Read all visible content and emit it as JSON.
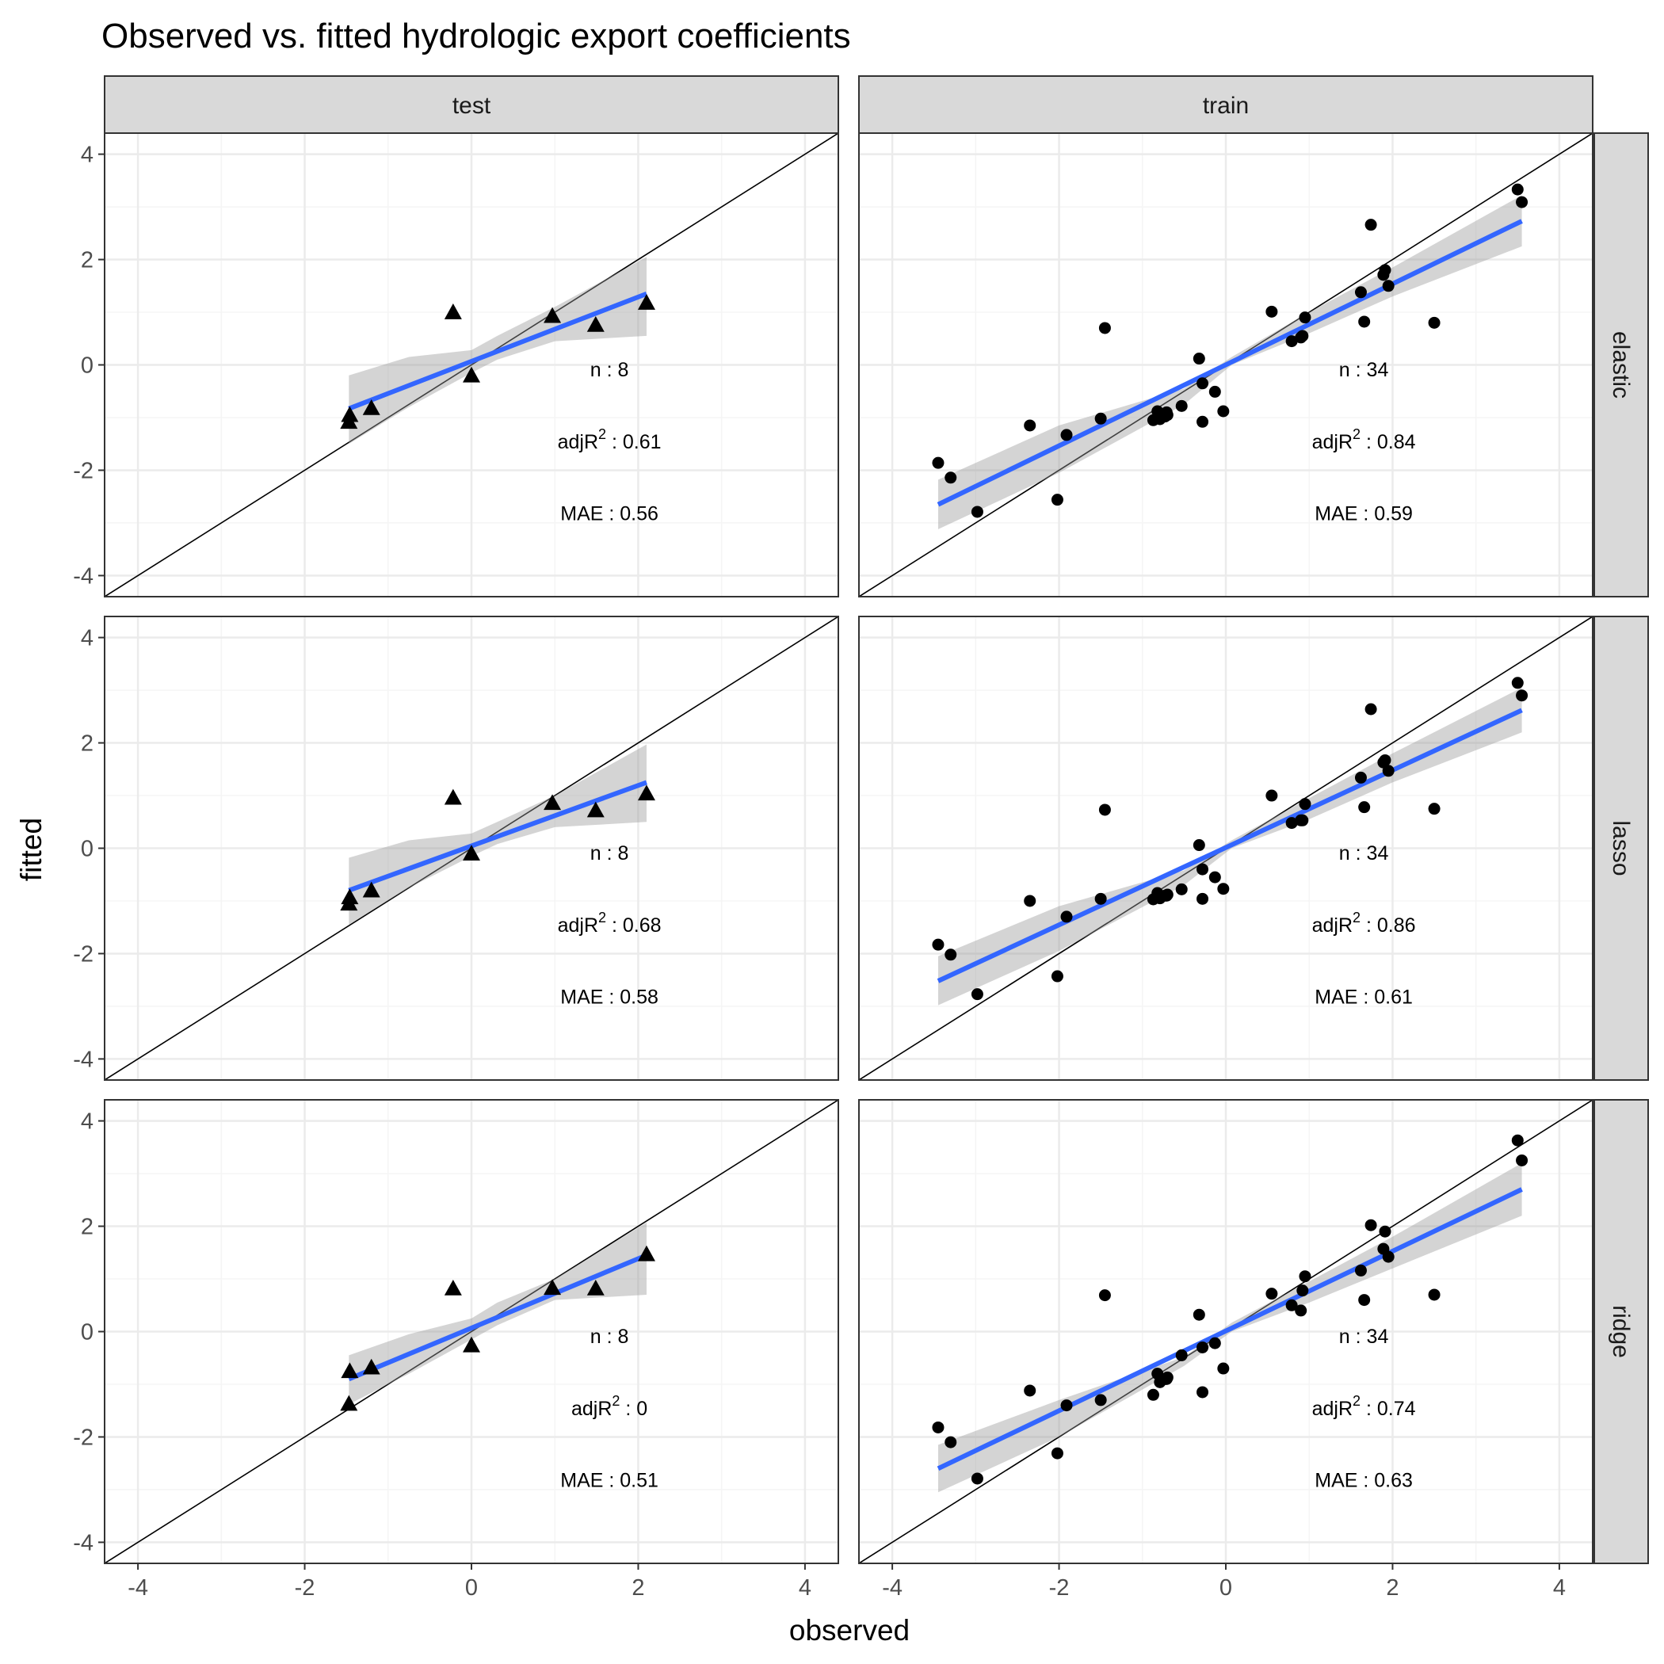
{
  "chart_data": {
    "type": "scatter",
    "title": "Observed vs. fitted hydrologic export coefficients",
    "xlabel": "observed",
    "ylabel": "fitted",
    "xlim": [
      -4.4,
      4.4
    ],
    "ylim": [
      -4.4,
      4.4
    ],
    "ticks": [
      -4,
      -2,
      0,
      2,
      4
    ],
    "tick_labels": [
      "-4",
      "-2",
      "0",
      "2",
      "4"
    ],
    "grid": true,
    "column_facets": [
      "test",
      "train"
    ],
    "row_facets": [
      "elastic",
      "lasso",
      "ridge"
    ],
    "reference_line": "y = x",
    "smooth_color": "#3366FF",
    "ribbon_color": "#999999",
    "point_color": "#000000",
    "panels": [
      {
        "row": "elastic",
        "col": "test",
        "marker": "triangle",
        "x": [
          -1.47,
          -1.46,
          -1.2,
          -0.22,
          0.0,
          0.97,
          1.49,
          2.1
        ],
        "y": [
          -1.08,
          -0.95,
          -0.82,
          1.0,
          -0.2,
          0.93,
          0.76,
          1.18
        ],
        "fit": {
          "x": [
            -1.47,
            2.1
          ],
          "y": [
            -0.83,
            1.35
          ]
        },
        "ribbon": {
          "x": [
            -1.47,
            -0.75,
            0.0,
            0.31,
            1.0,
            2.1
          ],
          "lower": [
            -1.5,
            -0.8,
            -0.15,
            0.1,
            0.45,
            0.55
          ],
          "upper": [
            -0.2,
            0.15,
            0.28,
            0.55,
            1.1,
            2.05
          ]
        },
        "annotations": {
          "n": "n : 8",
          "r2_label": "adjR",
          "r2_sup": "2",
          "r2_value": " : 0.61",
          "mae": "MAE : 0.56"
        }
      },
      {
        "row": "elastic",
        "col": "train",
        "marker": "circle",
        "x": [
          -3.45,
          -3.3,
          -2.98,
          -2.35,
          -2.02,
          -1.91,
          -1.5,
          -1.45,
          -0.87,
          -0.82,
          -0.79,
          -0.73,
          -0.7,
          -0.53,
          -0.32,
          -0.28,
          -0.13,
          -0.03,
          0.55,
          0.79,
          0.9,
          0.92,
          0.95,
          1.62,
          1.66,
          1.74,
          1.89,
          1.91,
          1.95,
          2.5,
          3.5,
          3.55,
          -0.28,
          -0.71
        ],
        "y": [
          -1.86,
          -2.14,
          -2.79,
          -1.15,
          -2.56,
          -1.33,
          -1.02,
          0.7,
          -1.05,
          -0.88,
          -1.03,
          -0.98,
          -0.95,
          -0.78,
          0.12,
          -1.08,
          -0.51,
          -0.88,
          1.01,
          0.45,
          0.52,
          0.55,
          0.9,
          1.38,
          0.82,
          2.66,
          1.71,
          1.8,
          1.5,
          0.8,
          3.33,
          3.09,
          -0.35,
          -0.9
        ],
        "fit": {
          "x": [
            -3.45,
            3.55
          ],
          "y": [
            -2.65,
            2.73
          ]
        },
        "ribbon": {
          "x": [
            -3.45,
            -2.0,
            -0.5,
            0.07,
            1.0,
            2.0,
            3.55
          ],
          "lower": [
            -3.12,
            -2.05,
            -0.75,
            0.0,
            0.6,
            1.3,
            2.25
          ],
          "upper": [
            -2.18,
            -1.15,
            -0.45,
            0.15,
            1.0,
            1.85,
            3.22
          ]
        },
        "annotations": {
          "n": "n : 34",
          "r2_label": "adjR",
          "r2_sup": "2",
          "r2_value": " : 0.84",
          "mae": "MAE : 0.59"
        }
      },
      {
        "row": "lasso",
        "col": "test",
        "marker": "triangle",
        "x": [
          -1.47,
          -1.46,
          -1.2,
          -0.22,
          0.0,
          0.97,
          1.49,
          2.1
        ],
        "y": [
          -1.05,
          -0.93,
          -0.8,
          0.96,
          -0.1,
          0.86,
          0.72,
          1.04
        ],
        "fit": {
          "x": [
            -1.47,
            2.1
          ],
          "y": [
            -0.8,
            1.25
          ]
        },
        "ribbon": {
          "x": [
            -1.47,
            -0.75,
            0.0,
            0.31,
            1.0,
            2.1
          ],
          "lower": [
            -1.45,
            -0.75,
            -0.15,
            0.08,
            0.4,
            0.5
          ],
          "upper": [
            -0.18,
            0.15,
            0.28,
            0.5,
            1.0,
            1.97
          ]
        },
        "annotations": {
          "n": "n : 8",
          "r2_label": "adjR",
          "r2_sup": "2",
          "r2_value": " : 0.68",
          "mae": "MAE : 0.58"
        }
      },
      {
        "row": "lasso",
        "col": "train",
        "marker": "circle",
        "x": [
          -3.45,
          -3.3,
          -2.98,
          -2.35,
          -2.02,
          -1.91,
          -1.5,
          -1.45,
          -0.87,
          -0.82,
          -0.79,
          -0.73,
          -0.7,
          -0.53,
          -0.32,
          -0.28,
          -0.13,
          -0.03,
          0.55,
          0.79,
          0.9,
          0.92,
          0.95,
          1.62,
          1.66,
          1.74,
          1.89,
          1.91,
          1.95,
          2.5,
          3.5,
          3.55,
          -0.28,
          -0.71
        ],
        "y": [
          -1.83,
          -2.02,
          -2.77,
          -1.0,
          -2.43,
          -1.3,
          -0.96,
          0.73,
          -0.97,
          -0.85,
          -0.95,
          -0.9,
          -0.88,
          -0.78,
          0.06,
          -0.96,
          -0.55,
          -0.77,
          1.0,
          0.48,
          0.53,
          0.53,
          0.84,
          1.34,
          0.78,
          2.64,
          1.63,
          1.67,
          1.47,
          0.75,
          3.14,
          2.9,
          -0.4,
          -0.9
        ],
        "fit": {
          "x": [
            -3.45,
            3.55
          ],
          "y": [
            -2.52,
            2.62
          ]
        },
        "ribbon": {
          "x": [
            -3.45,
            -2.0,
            -0.5,
            0.07,
            1.0,
            2.0,
            3.55
          ],
          "lower": [
            -2.98,
            -1.95,
            -0.7,
            0.0,
            0.55,
            1.25,
            2.2
          ],
          "upper": [
            -2.05,
            -1.1,
            -0.42,
            0.15,
            0.95,
            1.8,
            3.05
          ]
        },
        "annotations": {
          "n": "n : 34",
          "r2_label": "adjR",
          "r2_sup": "2",
          "r2_value": " : 0.86",
          "mae": "MAE : 0.61"
        }
      },
      {
        "row": "ridge",
        "col": "test",
        "marker": "triangle",
        "x": [
          -1.47,
          -1.46,
          -1.2,
          -0.22,
          0.0,
          0.97,
          1.49,
          2.1
        ],
        "y": [
          -1.37,
          -0.75,
          -0.68,
          0.82,
          -0.26,
          0.83,
          0.82,
          1.47
        ],
        "fit": {
          "x": [
            -1.47,
            2.1
          ],
          "y": [
            -0.9,
            1.45
          ]
        },
        "ribbon": {
          "x": [
            -1.47,
            -0.75,
            0.0,
            0.31,
            1.0,
            2.1
          ],
          "lower": [
            -1.38,
            -0.8,
            -0.15,
            0.12,
            0.6,
            0.7
          ],
          "upper": [
            -0.45,
            -0.05,
            0.25,
            0.55,
            1.0,
            2.07
          ]
        },
        "annotations": {
          "n": "n : 8",
          "r2_label": "adjR",
          "r2_sup": "2",
          "r2_value": " : 0",
          "mae": "MAE : 0.51"
        }
      },
      {
        "row": "ridge",
        "col": "train",
        "marker": "circle",
        "x": [
          -3.45,
          -3.3,
          -2.98,
          -2.35,
          -2.02,
          -1.91,
          -1.5,
          -1.45,
          -0.87,
          -0.82,
          -0.79,
          -0.73,
          -0.7,
          -0.53,
          -0.32,
          -0.28,
          -0.13,
          -0.03,
          0.55,
          0.79,
          0.9,
          0.92,
          0.95,
          1.62,
          1.66,
          1.74,
          1.89,
          1.91,
          1.95,
          2.5,
          3.5,
          3.55,
          -0.28,
          -0.71
        ],
        "y": [
          -1.82,
          -2.1,
          -2.79,
          -1.12,
          -2.31,
          -1.4,
          -1.3,
          0.69,
          -1.2,
          -0.8,
          -0.96,
          -0.9,
          -0.87,
          -0.45,
          0.32,
          -1.15,
          -0.22,
          -0.7,
          0.72,
          0.5,
          0.4,
          0.78,
          1.05,
          1.16,
          0.6,
          2.02,
          1.57,
          1.9,
          1.42,
          0.7,
          3.63,
          3.25,
          -0.3,
          -0.9
        ],
        "fit": {
          "x": [
            -3.45,
            3.55
          ],
          "y": [
            -2.6,
            2.7
          ]
        },
        "ribbon": {
          "x": [
            -3.45,
            -2.0,
            -0.5,
            0.07,
            1.0,
            2.0,
            3.55
          ],
          "lower": [
            -3.05,
            -2.0,
            -0.65,
            0.0,
            0.55,
            1.2,
            2.2
          ],
          "upper": [
            -2.15,
            -1.3,
            -0.48,
            0.17,
            0.95,
            1.8,
            3.2
          ]
        },
        "annotations": {
          "n": "n : 34",
          "r2_label": "adjR",
          "r2_sup": "2",
          "r2_value": " : 0.74",
          "mae": "MAE : 0.63"
        }
      }
    ]
  },
  "colors": {
    "panel_border": "#333333",
    "grid_major": "#ebebeb",
    "grid_minor": "#f5f5f5",
    "strip_fill": "#d9d9d9",
    "strip_border": "#333333",
    "tick_text": "#4d4d4d"
  }
}
